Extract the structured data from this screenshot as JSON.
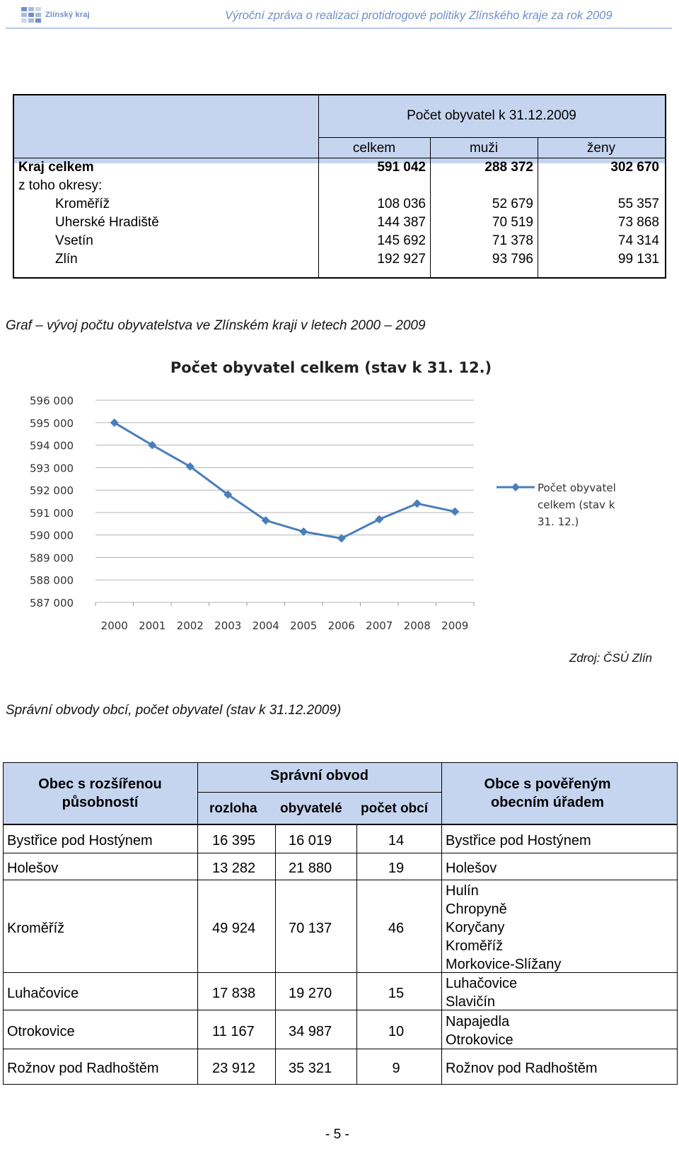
{
  "header": {
    "logo_text": "Zlínský kraj",
    "title": "Výroční zpráva o realizaci protidrogové politiky Zlínského kraje za rok 2009"
  },
  "population_table": {
    "group_header": "Počet obyvatel k 31.12.2009",
    "columns": [
      "celkem",
      "muži",
      "ženy"
    ],
    "rows": [
      {
        "label": "Kraj celkem",
        "values": [
          "591 042",
          "288 372",
          "302 670"
        ]
      },
      {
        "label": "z toho okresy:",
        "values": [
          "",
          "",
          ""
        ]
      },
      {
        "label": "Kroměříž",
        "values": [
          "108 036",
          "52 679",
          "55 357"
        ]
      },
      {
        "label": "Uherské Hradiště",
        "values": [
          "144 387",
          "70 519",
          "73 868"
        ]
      },
      {
        "label": "Vsetín",
        "values": [
          "145 692",
          "71 378",
          "74 314"
        ]
      },
      {
        "label": "Zlín",
        "values": [
          "192 927",
          "93 796",
          "99 131"
        ]
      }
    ]
  },
  "graph_caption": "Graf – vývoj počtu obyvatelstva ve Zlínském kraji v letech 2000 – 2009",
  "chart_data": {
    "type": "line",
    "title": "Počet obyvatel celkem (stav k 31. 12.)",
    "x": [
      "2000",
      "2001",
      "2002",
      "2003",
      "2004",
      "2005",
      "2006",
      "2007",
      "2008",
      "2009"
    ],
    "series": [
      {
        "name": "Počet obyvatel celkem (stav k 31. 12.)",
        "values": [
          595000,
          594000,
          593050,
          591800,
          590650,
          590150,
          589850,
          590700,
          591400,
          591042
        ],
        "color": "#4a7ebb"
      }
    ],
    "y_ticks": [
      "596 000",
      "595 000",
      "594 000",
      "593 000",
      "592 000",
      "591 000",
      "590 000",
      "589 000",
      "588 000",
      "587 000"
    ],
    "ylim": [
      587000,
      596000
    ],
    "grid": true,
    "legend": "right"
  },
  "source_note": "Zdroj: ČSÚ Zlín",
  "districts_caption": "Správní obvody obcí, počet obyvatel (stav k 31.12.2009)",
  "districts_table": {
    "col_first": "Obec s rozšířenou působností",
    "group_header": "Správní obvod",
    "sub_columns": [
      "rozloha",
      "obyvatelé",
      "počet obcí"
    ],
    "col_last": "Obce s pověřeným obecním úřadem",
    "rows": [
      {
        "obec": "Bystřice pod Hostýnem",
        "rozloha": "16 395",
        "obyvatele": "16 019",
        "pocet": "14",
        "poverene": [
          "Bystřice pod Hostýnem"
        ]
      },
      {
        "obec": "Holešov",
        "rozloha": "13 282",
        "obyvatele": "21 880",
        "pocet": "19",
        "poverene": [
          "Holešov"
        ]
      },
      {
        "obec": "Kroměříž",
        "rozloha": "49 924",
        "obyvatele": "70 137",
        "pocet": "46",
        "poverene": [
          "Hulín",
          "Chropyně",
          "Koryčany",
          "Kroměříž",
          "Morkovice-Slížany"
        ]
      },
      {
        "obec": "Luhačovice",
        "rozloha": "17 838",
        "obyvatele": "19 270",
        "pocet": "15",
        "poverene": [
          "Luhačovice",
          "Slavičín"
        ]
      },
      {
        "obec": "Otrokovice",
        "rozloha": "11 167",
        "obyvatele": "34 987",
        "pocet": "10",
        "poverene": [
          "Napajedla",
          "Otrokovice"
        ]
      },
      {
        "obec": "Rožnov pod Radhoštěm",
        "rozloha": "23 912",
        "obyvatele": "35 321",
        "pocet": "9",
        "poverene": [
          "Rožnov pod Radhoštěm"
        ]
      }
    ]
  },
  "page_number": "- 5 -"
}
